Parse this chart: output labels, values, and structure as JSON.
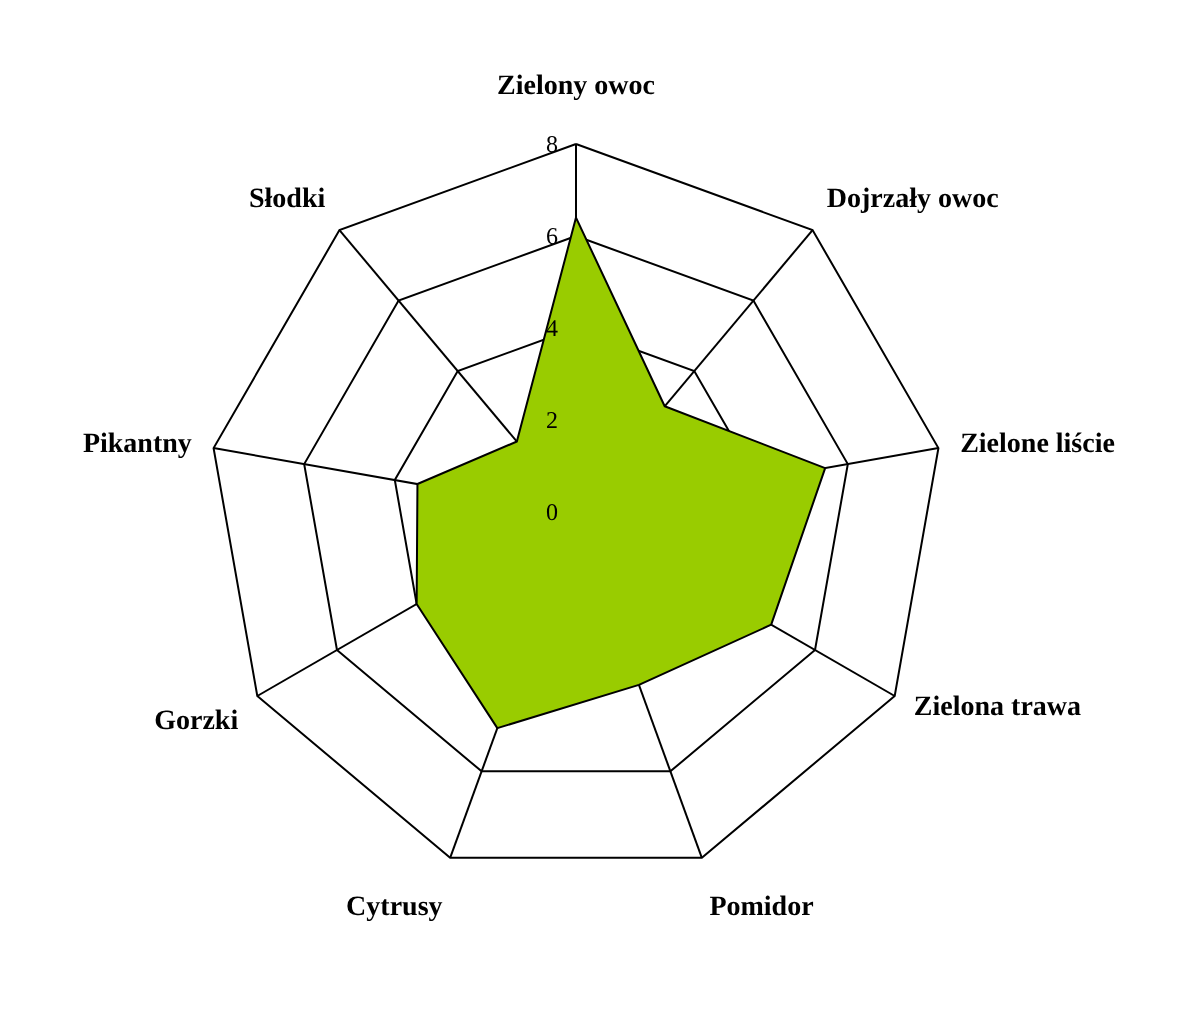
{
  "chart_data": {
    "type": "radar",
    "categories": [
      "Zielony owoc",
      "Dojrzały owoc",
      "Zielone liście",
      "Zielona trawa",
      "Pomidor",
      "Cytrusy",
      "Gorzki",
      "Pikantny",
      "Słodki"
    ],
    "series": [
      {
        "color": "#99cc00",
        "values": [
          6.4,
          3.0,
          5.5,
          4.9,
          4.0,
          5.0,
          4.0,
          3.5,
          2.0
        ]
      }
    ],
    "ylim": [
      0,
      8
    ],
    "yticks": [
      0,
      2,
      4,
      6,
      8
    ],
    "grid": true
  }
}
